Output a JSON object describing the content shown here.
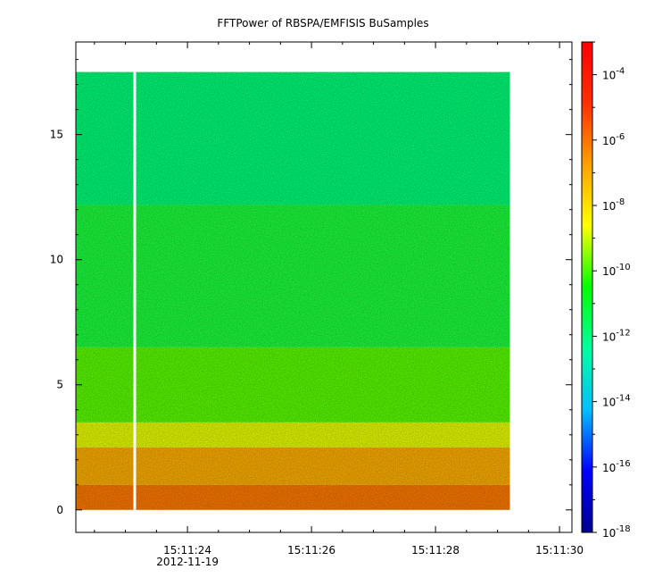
{
  "chart_data": {
    "type": "heatmap",
    "title": "FFTPower of RBSPA/EMFISIS  BuSamples",
    "xlabel": "",
    "ylabel": "",
    "x_axis": {
      "tick_labels": [
        "15:11:24",
        "15:11:26",
        "15:11:28",
        "15:11:30"
      ],
      "tick_seconds": [
        24,
        26,
        28,
        30
      ],
      "range_seconds": [
        22.2,
        30.2
      ],
      "date_label": "2012-11-19"
    },
    "y_axis": {
      "ticks": [
        0,
        5,
        10,
        15
      ],
      "range": [
        -0.9,
        18.7
      ]
    },
    "colorbar": {
      "scale": "log",
      "range": [
        "1e-18",
        "1e-3"
      ],
      "tick_exponents": [
        -18,
        -16,
        -14,
        -12,
        -10,
        -8,
        -6,
        -4
      ],
      "tick_base": "10",
      "colors": [
        "#00008f",
        "#0000ff",
        "#00c0ff",
        "#00ffa0",
        "#00ff00",
        "#ffff00",
        "#ffa000",
        "#ff3000",
        "#ff0000"
      ]
    },
    "data": {
      "x_start_seconds": 22.2,
      "x_end_seconds": 29.2,
      "gap_seconds": 23.15,
      "y_max": 17.5,
      "bands": [
        {
          "y_range": [
            0,
            1.0
          ],
          "log10_power": -7.0,
          "color": "#ff7a00"
        },
        {
          "y_range": [
            1.0,
            2.5
          ],
          "log10_power": -7.8,
          "color": "#ffb000"
        },
        {
          "y_range": [
            2.5,
            3.5
          ],
          "log10_power": -8.8,
          "color": "#e8ff00"
        },
        {
          "y_range": [
            3.5,
            6.5
          ],
          "log10_power": -10.2,
          "color": "#5aff00"
        },
        {
          "y_range": [
            6.5,
            12.2
          ],
          "log10_power": -11.0,
          "color": "#1cff3c"
        },
        {
          "y_range": [
            12.2,
            17.5
          ],
          "log10_power": -12.0,
          "color": "#00ff78"
        }
      ]
    }
  }
}
